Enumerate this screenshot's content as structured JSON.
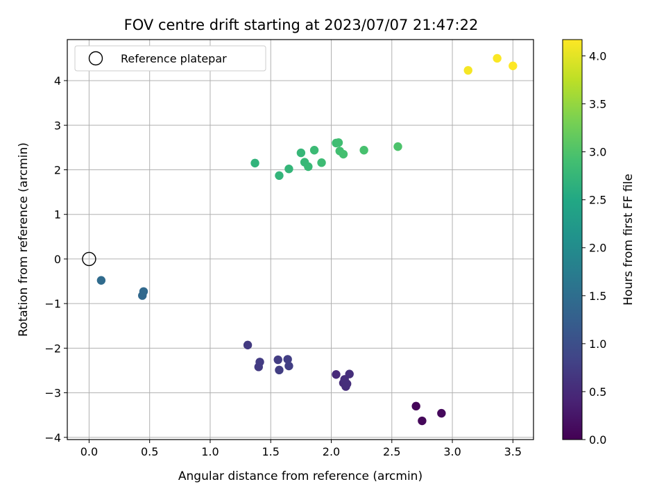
{
  "chart_data": {
    "type": "scatter",
    "title": "FOV centre drift starting at 2023/07/07 21:47:22",
    "xlabel": "Angular distance from reference (arcmin)",
    "ylabel": "Rotation from reference (arcmin)",
    "xlim": [
      -0.18,
      3.67
    ],
    "ylim": [
      -4.05,
      4.92
    ],
    "xticks": [
      0.0,
      0.5,
      1.0,
      1.5,
      2.0,
      2.5,
      3.0,
      3.5
    ],
    "xtick_labels": [
      "0.0",
      "0.5",
      "1.0",
      "1.5",
      "2.0",
      "2.5",
      "3.0",
      "3.5"
    ],
    "yticks": [
      -4,
      -3,
      -2,
      -1,
      0,
      1,
      2,
      3,
      4
    ],
    "ytick_labels": [
      "−4",
      "−3",
      "−2",
      "−1",
      "0",
      "1",
      "2",
      "3",
      "4"
    ],
    "grid": true,
    "legend": {
      "placement": "top-left",
      "entries": [
        {
          "label": "Reference platepar",
          "marker": "open-circle"
        }
      ]
    },
    "reference_point": {
      "x": 0.0,
      "y": 0.0
    },
    "colorbar": {
      "label": "Hours from first FF file",
      "colormap": "viridis",
      "range": [
        0.0,
        4.17
      ],
      "ticks": [
        0.0,
        0.5,
        1.0,
        1.5,
        2.0,
        2.5,
        3.0,
        3.5,
        4.0
      ],
      "tick_labels": [
        "0.0",
        "0.5",
        "1.0",
        "1.5",
        "2.0",
        "2.5",
        "3.0",
        "3.5",
        "4.0"
      ]
    },
    "points": [
      {
        "x": 2.7,
        "y": -3.3,
        "c": 0.05
      },
      {
        "x": 2.75,
        "y": -3.63,
        "c": 0.08
      },
      {
        "x": 2.91,
        "y": -3.46,
        "c": 0.1
      },
      {
        "x": 2.04,
        "y": -2.59,
        "c": 0.5
      },
      {
        "x": 2.1,
        "y": -2.78,
        "c": 0.52
      },
      {
        "x": 2.12,
        "y": -2.86,
        "c": 0.54
      },
      {
        "x": 2.13,
        "y": -2.8,
        "c": 0.55
      },
      {
        "x": 2.15,
        "y": -2.58,
        "c": 0.56
      },
      {
        "x": 2.11,
        "y": -2.7,
        "c": 0.55
      },
      {
        "x": 1.31,
        "y": -1.93,
        "c": 0.7
      },
      {
        "x": 1.4,
        "y": -2.42,
        "c": 0.72
      },
      {
        "x": 1.41,
        "y": -2.31,
        "c": 0.73
      },
      {
        "x": 1.56,
        "y": -2.26,
        "c": 0.74
      },
      {
        "x": 1.57,
        "y": -2.49,
        "c": 0.75
      },
      {
        "x": 1.64,
        "y": -2.25,
        "c": 0.76
      },
      {
        "x": 1.65,
        "y": -2.4,
        "c": 0.77
      },
      {
        "x": 0.1,
        "y": -0.48,
        "c": 1.45
      },
      {
        "x": 0.44,
        "y": -0.82,
        "c": 1.4
      },
      {
        "x": 0.45,
        "y": -0.73,
        "c": 1.42
      },
      {
        "x": 1.37,
        "y": 2.15,
        "c": 2.7
      },
      {
        "x": 1.57,
        "y": 1.87,
        "c": 2.72
      },
      {
        "x": 1.65,
        "y": 2.02,
        "c": 2.74
      },
      {
        "x": 1.75,
        "y": 2.38,
        "c": 2.76
      },
      {
        "x": 1.78,
        "y": 2.17,
        "c": 2.78
      },
      {
        "x": 1.81,
        "y": 2.07,
        "c": 2.8
      },
      {
        "x": 1.86,
        "y": 2.44,
        "c": 2.82
      },
      {
        "x": 1.92,
        "y": 2.16,
        "c": 2.84
      },
      {
        "x": 2.04,
        "y": 2.6,
        "c": 2.86
      },
      {
        "x": 2.06,
        "y": 2.61,
        "c": 2.88
      },
      {
        "x": 2.07,
        "y": 2.42,
        "c": 2.9
      },
      {
        "x": 2.1,
        "y": 2.35,
        "c": 2.92
      },
      {
        "x": 2.27,
        "y": 2.44,
        "c": 2.94
      },
      {
        "x": 2.55,
        "y": 2.52,
        "c": 2.98
      },
      {
        "x": 3.13,
        "y": 4.23,
        "c": 4.12
      },
      {
        "x": 3.37,
        "y": 4.5,
        "c": 4.15
      },
      {
        "x": 3.5,
        "y": 4.33,
        "c": 4.17
      }
    ]
  }
}
